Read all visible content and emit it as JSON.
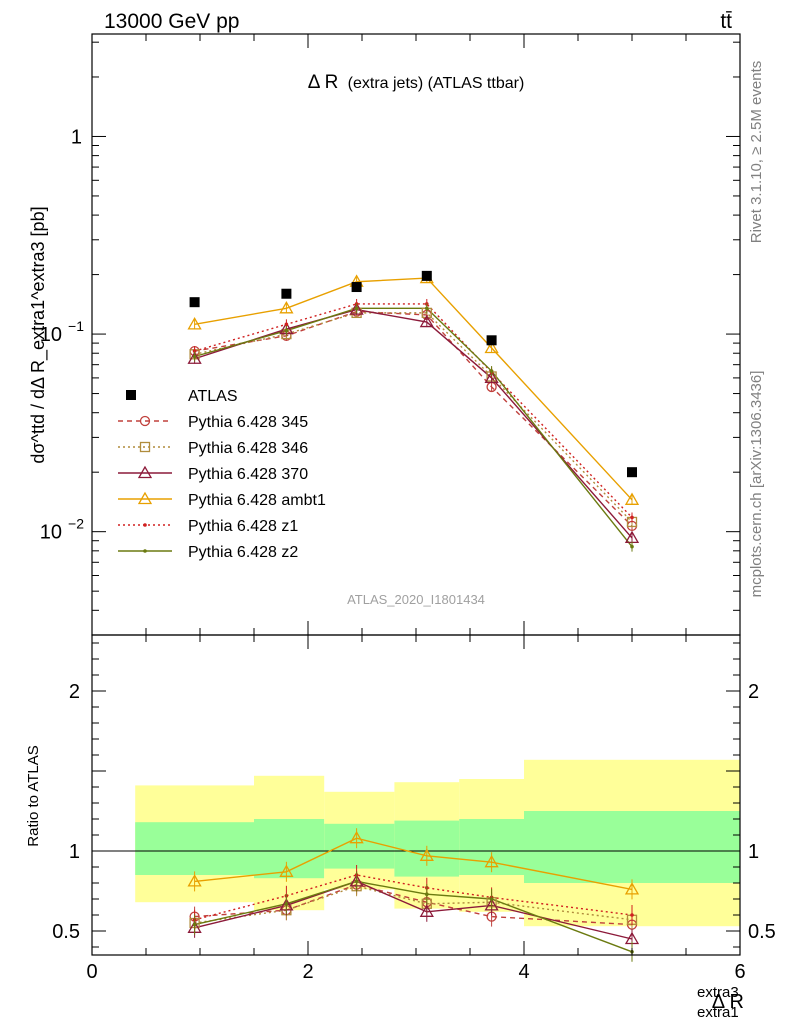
{
  "header": {
    "left": "13000 GeV pp",
    "right": "tt̄"
  },
  "side_labels": {
    "rivet": "Rivet 3.1.10, ≥ 2.5M events",
    "mcplots": "mcplots.cern.ch [arXiv:1306.3436]"
  },
  "chart_data": {
    "type": "scatter",
    "title_main": "Δ R",
    "title_rest": "(extra jets) (ATLAS ttbar)",
    "analysis_tag": "ATLAS_2020_I1801434",
    "xlabel": "Δ R",
    "xlabel_sup": "extra3",
    "xlabel_sub": "extra1",
    "ylabel": "dσ^ttd / dΔ R_extra1^extra3 [pb]",
    "ratio_ylabel": "Ratio to ATLAS",
    "xlim": [
      0,
      6
    ],
    "ylim_main": [
      0.003,
      3.3
    ],
    "yscale_main": "log",
    "ylim_ratio": [
      0.35,
      2.35
    ],
    "xticks": [
      "0",
      "2",
      "4",
      "6"
    ],
    "main_yticks": [
      {
        "value": 1,
        "label": "1"
      },
      {
        "value": 0.1,
        "label": "10",
        "exp": "−1"
      },
      {
        "value": 0.01,
        "label": "10",
        "exp": "−2"
      }
    ],
    "ratio_yticks": [
      {
        "value": 0.5,
        "label": "0.5"
      },
      {
        "value": 1,
        "label": "1"
      },
      {
        "value": 2,
        "label": "2"
      }
    ],
    "x": [
      0.95,
      1.8,
      2.45,
      3.1,
      3.7,
      5.0
    ],
    "bin_edges": [
      0.4,
      1.5,
      2.15,
      2.8,
      3.4,
      4.0,
      6.0
    ],
    "band_inner": [
      [
        0.85,
        1.18
      ],
      [
        0.83,
        1.2
      ],
      [
        0.89,
        1.17
      ],
      [
        0.84,
        1.19
      ],
      [
        0.85,
        1.2
      ],
      [
        0.8,
        1.25
      ]
    ],
    "band_outer": [
      [
        0.68,
        1.41
      ],
      [
        0.63,
        1.47
      ],
      [
        0.76,
        1.37
      ],
      [
        0.64,
        1.43
      ],
      [
        0.62,
        1.45
      ],
      [
        0.53,
        1.57
      ]
    ],
    "data": {
      "name": "ATLAS",
      "values": [
        0.145,
        0.16,
        0.173,
        0.197,
        0.093,
        0.02
      ]
    },
    "series": [
      {
        "name": "Pythia 6.428 345",
        "color": "#c0403c",
        "dash": "5,4",
        "marker": "circle",
        "values": [
          0.082,
          0.098,
          0.13,
          0.125,
          0.054,
          0.0107
        ],
        "ratio": [
          0.59,
          0.63,
          0.79,
          0.68,
          0.59,
          0.54
        ]
      },
      {
        "name": "Pythia 6.428 346",
        "color": "#b08c3c",
        "dash": "2,3",
        "marker": "square",
        "values": [
          0.079,
          0.1,
          0.128,
          0.128,
          0.061,
          0.0112
        ],
        "ratio": [
          0.55,
          0.63,
          0.78,
          0.67,
          0.68,
          0.57
        ]
      },
      {
        "name": "Pythia 6.428 370",
        "color": "#8c1a3a",
        "dash": "",
        "marker": "triangle",
        "values": [
          0.075,
          0.106,
          0.133,
          0.115,
          0.06,
          0.0093
        ],
        "ratio": [
          0.52,
          0.66,
          0.81,
          0.62,
          0.66,
          0.45
        ]
      },
      {
        "name": "Pythia 6.428 ambt1",
        "color": "#e8a000",
        "dash": "",
        "marker": "triangle",
        "values": [
          0.112,
          0.135,
          0.184,
          0.192,
          0.085,
          0.0145
        ],
        "ratio": [
          0.81,
          0.87,
          1.08,
          0.97,
          0.93,
          0.76
        ]
      },
      {
        "name": "Pythia 6.428 z1",
        "color": "#d02020",
        "dash": "2,3",
        "marker": "dot",
        "values": [
          0.082,
          0.112,
          0.142,
          0.142,
          0.064,
          0.0118
        ],
        "ratio": [
          0.57,
          0.72,
          0.85,
          0.77,
          0.71,
          0.6
        ]
      },
      {
        "name": "Pythia 6.428 z2",
        "color": "#6b7a10",
        "dash": "",
        "marker": "dot",
        "values": [
          0.077,
          0.104,
          0.135,
          0.135,
          0.065,
          0.0084
        ],
        "ratio": [
          0.54,
          0.67,
          0.81,
          0.73,
          0.7,
          0.37
        ]
      }
    ]
  }
}
